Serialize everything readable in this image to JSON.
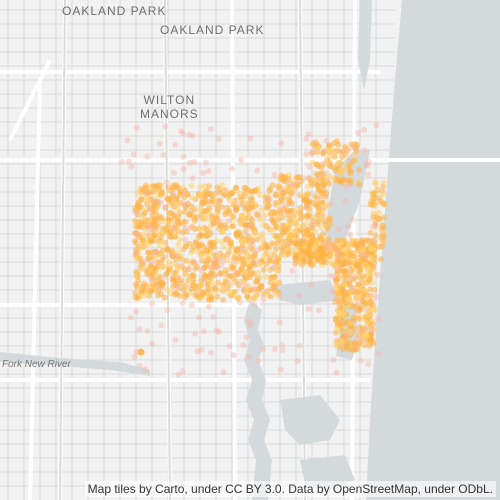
{
  "map": {
    "place_labels": [
      {
        "id": "oakland-park-top",
        "text": "OAKLAND PARK"
      },
      {
        "id": "oakland-park",
        "text": "OAKLAND PARK"
      },
      {
        "id": "wilton-manors",
        "line1": "WILTON",
        "line2": "MANORS"
      }
    ],
    "water_label": "Fork New River",
    "attribution": "Map tiles by Carto, under CC BY 3.0. Data by OpenStreetMap, under ODbL.",
    "colors": {
      "land": "#f2f2f2",
      "ocean": "#d4dadc",
      "roads": "#ffffff",
      "street_grid": "#d9d9d9",
      "points_primary": "#ffb347",
      "points_secondary": "#ffd36b",
      "points_faint": "#f7b5a8"
    }
  }
}
